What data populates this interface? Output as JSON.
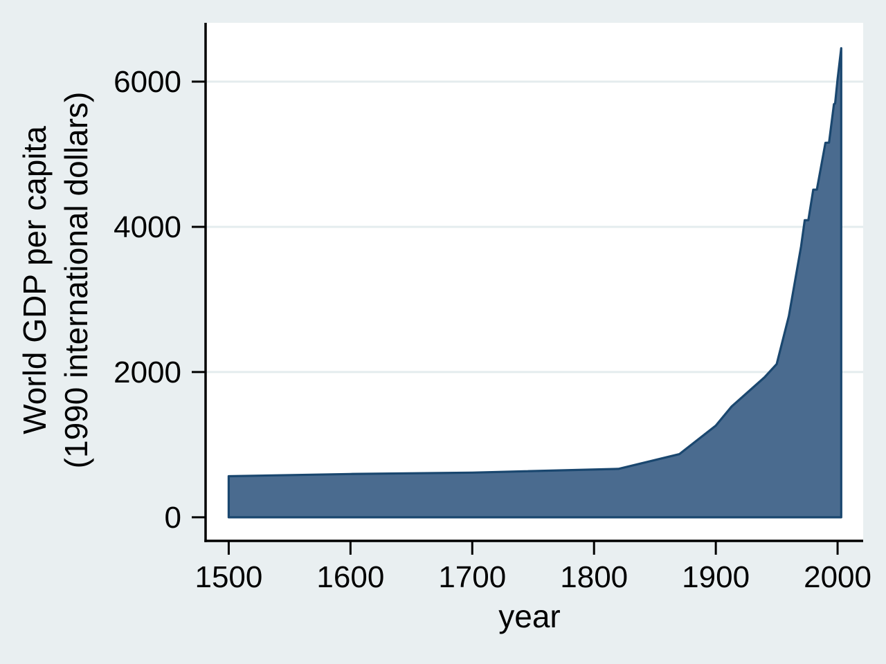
{
  "chart_data": {
    "type": "area",
    "title": "",
    "xlabel": "year",
    "ylabel_line1": "World GDP per capita",
    "ylabel_line2": "(1990 international dollars)",
    "series_name": "World GDP per capita (1990 international dollars)",
    "x": [
      1500,
      1600,
      1700,
      1820,
      1870,
      1900,
      1913,
      1940,
      1950,
      1960,
      1970,
      1973,
      1976,
      1980,
      1983,
      1990,
      1993,
      1997,
      1998,
      2000,
      2003
    ],
    "values": [
      566,
      596,
      615,
      667,
      870,
      1262,
      1526,
      1928,
      2111,
      2773,
      3729,
      4091,
      4091,
      4512,
      4512,
      5157,
      5160,
      5690,
      5700,
      6038,
      6460
    ],
    "baseline": 0,
    "x_ticks": [
      1500,
      1600,
      1700,
      1800,
      1900,
      2000
    ],
    "y_ticks": [
      0,
      2000,
      4000,
      6000
    ],
    "xlim": [
      1481,
      2021
    ],
    "ylim": [
      -325,
      6810
    ],
    "grid": true,
    "grid_ticks": [
      2000,
      4000,
      6000
    ],
    "legend": "none",
    "colors": {
      "figure_bg": "#e9eff1",
      "plot_bg": "#ffffff",
      "grid": "#e4ecee",
      "area_fill": "#4a6b8f",
      "area_stroke": "#1a476f",
      "axis": "#000000"
    }
  }
}
